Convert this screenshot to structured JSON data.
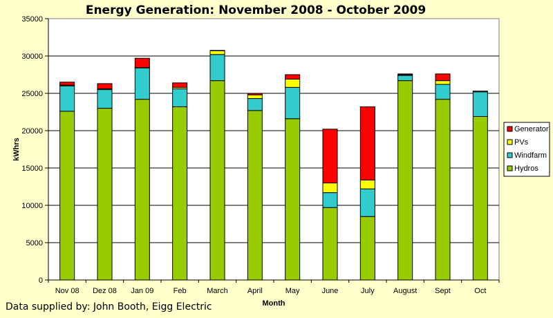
{
  "chart_data": {
    "type": "bar",
    "stacked": true,
    "title": "Energy Generation: November 2008 - October 2009",
    "xlabel": "Month",
    "ylabel": "kWhrs",
    "ylim": [
      0,
      35000
    ],
    "yticks": [
      0,
      5000,
      10000,
      15000,
      20000,
      25000,
      30000,
      35000
    ],
    "grid": true,
    "legend_position": "right",
    "categories": [
      "Nov 08",
      "Dez 08",
      "Jan 09",
      "Feb",
      "March",
      "April",
      "May",
      "June",
      "July",
      "August",
      "Sept",
      "Oct"
    ],
    "series": [
      {
        "name": "Hydros",
        "color": "#99cc00",
        "values": [
          22600,
          23000,
          24200,
          23200,
          26700,
          22700,
          21600,
          9700,
          8500,
          26700,
          24200,
          21900
        ]
      },
      {
        "name": "Windfarm",
        "color": "#33cccc",
        "values": [
          3400,
          2500,
          4200,
          2400,
          3500,
          1600,
          4200,
          2000,
          3700,
          700,
          2000,
          3300
        ]
      },
      {
        "name": "PVs",
        "color": "#ffff00",
        "values": [
          100,
          100,
          50,
          200,
          500,
          500,
          1100,
          1300,
          1200,
          100,
          500,
          100
        ]
      },
      {
        "name": "Generator",
        "color": "#ff0000",
        "values": [
          400,
          700,
          1250,
          600,
          50,
          200,
          600,
          7200,
          9800,
          100,
          900,
          0
        ]
      }
    ],
    "legend_order": [
      "Generator",
      "PVs",
      "Windfarm",
      "Hydros"
    ]
  },
  "footer": "Data supplied by: John Booth, Eigg Electric"
}
